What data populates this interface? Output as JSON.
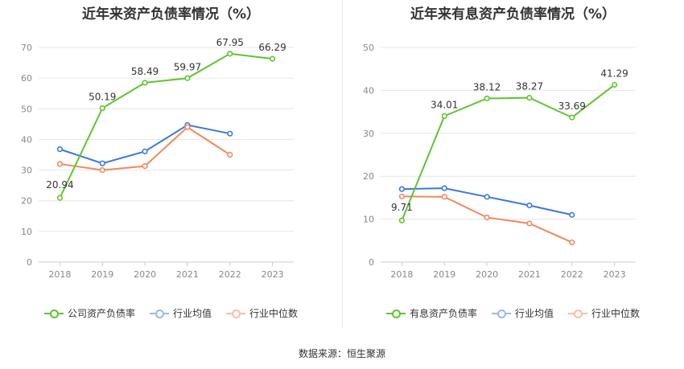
{
  "source_text": "数据来源：恒生聚源",
  "chart_data": [
    {
      "type": "line",
      "title": "近年来资产负债率情况（%）",
      "categories": [
        "2018",
        "2019",
        "2020",
        "2021",
        "2022",
        "2023"
      ],
      "ylim": [
        0,
        70
      ],
      "yticks": [
        0,
        10,
        20,
        30,
        40,
        50,
        60,
        70
      ],
      "grid": true,
      "legend_position": "bottom",
      "series": [
        {
          "name": "公司资产负债率",
          "color": "#5ec52f",
          "values": [
            20.94,
            50.19,
            58.49,
            59.97,
            67.95,
            66.29
          ],
          "labels": [
            "20.94",
            "50.19",
            "58.49",
            "59.97",
            "67.95",
            "66.29"
          ]
        },
        {
          "name": "行业均值",
          "color": "#3c78d8",
          "values": [
            36.8,
            32.2,
            36.1,
            44.7,
            41.9,
            null
          ]
        },
        {
          "name": "行业中位数",
          "color": "#f0895f",
          "values": [
            32.0,
            30.0,
            31.3,
            44.0,
            35.0,
            null
          ]
        }
      ]
    },
    {
      "type": "line",
      "title": "近年来有息资产负债率情况（%）",
      "categories": [
        "2018",
        "2019",
        "2020",
        "2021",
        "2022",
        "2023"
      ],
      "ylim": [
        0,
        50
      ],
      "yticks": [
        0,
        10,
        20,
        30,
        40,
        50
      ],
      "grid": true,
      "legend_position": "bottom",
      "series": [
        {
          "name": "有息资产负债率",
          "color": "#5ec52f",
          "values": [
            9.71,
            34.01,
            38.12,
            38.27,
            33.69,
            41.29
          ],
          "labels": [
            "9.71",
            "34.01",
            "38.12",
            "38.27",
            "33.69",
            "41.29"
          ]
        },
        {
          "name": "行业均值",
          "color": "#3c78d8",
          "values": [
            17.0,
            17.2,
            15.2,
            13.2,
            11.0,
            null
          ]
        },
        {
          "name": "行业中位数",
          "color": "#f0895f",
          "values": [
            15.3,
            15.2,
            10.4,
            9.0,
            4.6,
            null
          ]
        }
      ]
    }
  ]
}
